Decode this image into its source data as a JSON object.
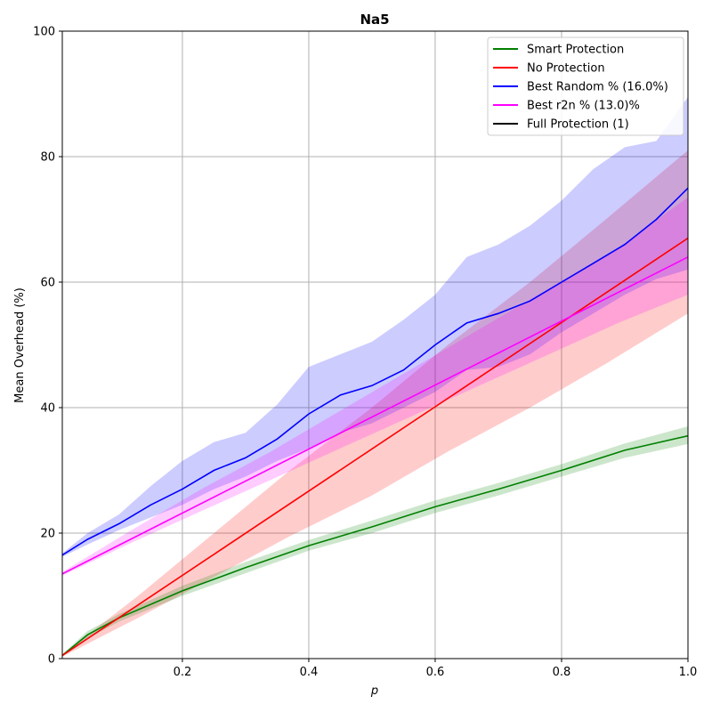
{
  "chart_data": {
    "type": "line",
    "title": "Na5",
    "xlabel": "p",
    "ylabel": "Mean Overhead (%)",
    "xlim": [
      0.01,
      1.0
    ],
    "ylim": [
      0,
      100
    ],
    "xticks": [
      "0.2",
      "0.4",
      "0.6",
      "0.8",
      "1.0"
    ],
    "yticks": [
      "0",
      "20",
      "40",
      "60",
      "80",
      "100"
    ],
    "grid": true,
    "legend_position": "top-right",
    "series": [
      {
        "name": "Smart Protection",
        "color": "#008000",
        "x": [
          0.01,
          0.05,
          0.1,
          0.2,
          0.3,
          0.4,
          0.5,
          0.6,
          0.7,
          0.8,
          0.9,
          1.0
        ],
        "y": [
          0.5,
          3.8,
          6.5,
          10.8,
          14.5,
          18.0,
          21.0,
          24.2,
          27.0,
          30.0,
          33.2,
          35.5
        ],
        "band_low": [
          0.3,
          3.2,
          5.9,
          10.0,
          13.6,
          17.2,
          20.0,
          23.2,
          26.0,
          29.0,
          32.0,
          34.2
        ],
        "band_high": [
          0.7,
          4.4,
          7.1,
          11.6,
          15.4,
          18.9,
          22.0,
          25.2,
          28.0,
          31.0,
          34.3,
          37.0
        ]
      },
      {
        "name": "No Protection",
        "color": "#ff0000",
        "x": [
          0.01,
          1.0
        ],
        "y": [
          0.5,
          67.0
        ],
        "band_low": [
          0.3,
          6.5,
          13.0,
          19.5,
          26.0,
          33.0,
          40.0,
          47.0,
          55.0
        ],
        "band_high": [
          0.7,
          10.0,
          20.0,
          30.0,
          40.0,
          50.0,
          60.0,
          70.0,
          81.0
        ],
        "band_x": [
          0.01,
          0.13,
          0.25,
          0.37,
          0.5,
          0.62,
          0.75,
          0.87,
          1.0
        ]
      },
      {
        "name": "Best Random % (16.0%)",
        "color": "#0000ff",
        "x": [
          0.01,
          0.05,
          0.1,
          0.15,
          0.2,
          0.25,
          0.3,
          0.35,
          0.4,
          0.45,
          0.5,
          0.55,
          0.6,
          0.65,
          0.7,
          0.75,
          0.8,
          0.85,
          0.9,
          0.95,
          1.0
        ],
        "y": [
          16.5,
          19.0,
          21.5,
          24.5,
          27.0,
          30.0,
          32.0,
          35.0,
          39.0,
          42.0,
          43.5,
          46.0,
          50.0,
          53.5,
          55.0,
          57.0,
          60.0,
          63.0,
          66.0,
          70.0,
          75.0
        ],
        "band_low": [
          16.2,
          18.2,
          20.5,
          22.5,
          24.5,
          27.0,
          29.0,
          31.5,
          33.5,
          36.0,
          37.5,
          40.0,
          42.5,
          46.0,
          46.5,
          48.5,
          52.0,
          55.0,
          58.0,
          60.5,
          62.0
        ],
        "band_high": [
          16.8,
          20.0,
          23.0,
          27.5,
          31.5,
          34.5,
          36.0,
          40.5,
          46.5,
          48.5,
          50.5,
          54.0,
          58.0,
          64.0,
          66.0,
          69.0,
          73.0,
          78.0,
          81.5,
          82.5,
          89.5
        ]
      },
      {
        "name": "Best r2n % (13.0)%",
        "color": "#ff00ff",
        "x": [
          0.01,
          1.0
        ],
        "y": [
          13.5,
          64.0
        ],
        "band_low": [
          13.2,
          18.5,
          23.5,
          28.5,
          33.5,
          38.5,
          43.5,
          48.5,
          53.5,
          58.0
        ],
        "band_high": [
          13.8,
          20.5,
          27.0,
          33.0,
          39.5,
          46.0,
          52.5,
          59.0,
          65.5,
          73.5
        ],
        "band_x": [
          0.01,
          0.12,
          0.23,
          0.34,
          0.45,
          0.56,
          0.67,
          0.78,
          0.89,
          1.0
        ]
      },
      {
        "name": "Full Protection (1)",
        "color": "#000000",
        "x": [],
        "y": []
      }
    ]
  }
}
